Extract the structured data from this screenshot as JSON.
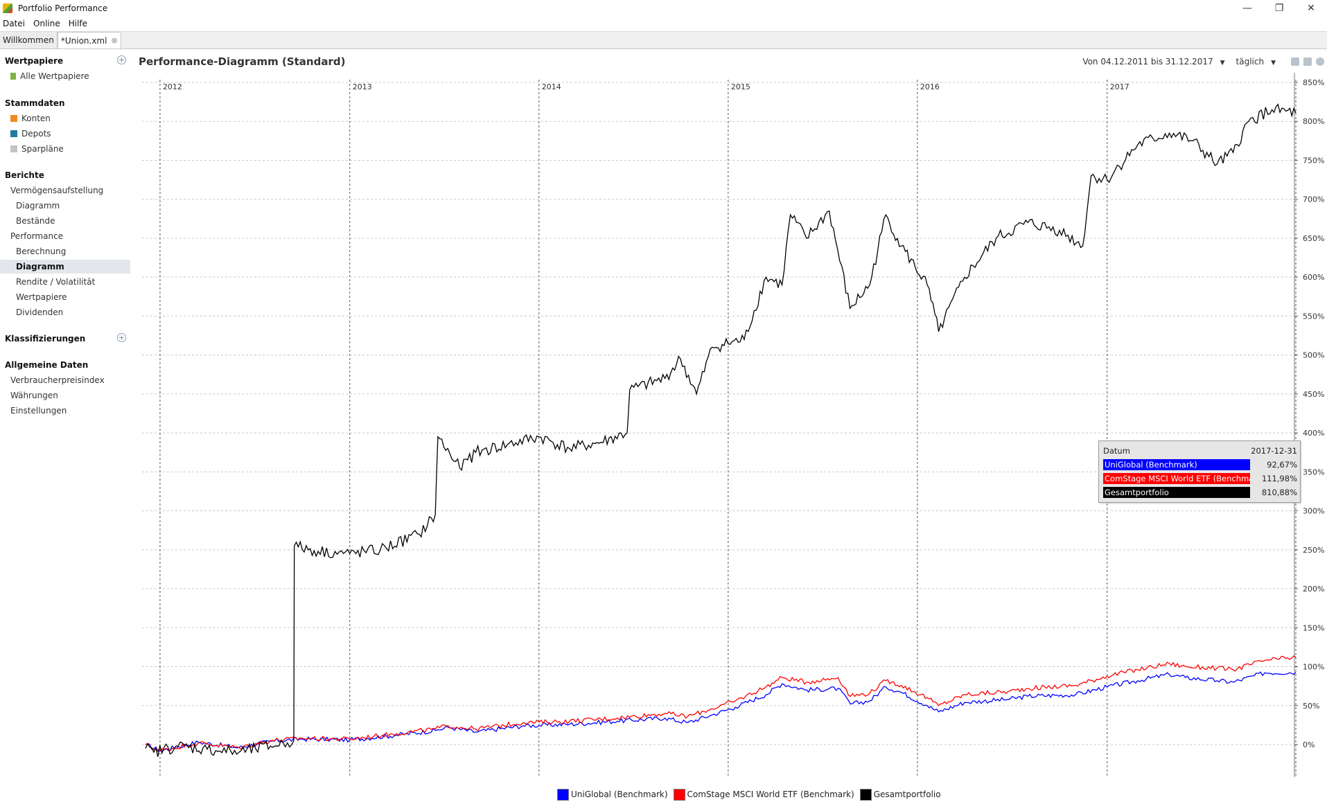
{
  "window": {
    "title": "Portfolio Performance"
  },
  "menu": [
    "Datei",
    "Online",
    "Hilfe"
  ],
  "tabs": [
    {
      "label": "Willkommen"
    },
    {
      "label": "*Union.xml"
    }
  ],
  "sidebar": {
    "wertpapiere": {
      "header": "Wertpapiere",
      "items": [
        "Alle Wertpapiere"
      ]
    },
    "stammdaten": {
      "header": "Stammdaten",
      "items": [
        "Konten",
        "Depots",
        "Sparpläne"
      ]
    },
    "berichte": {
      "header": "Berichte",
      "items": [
        "Vermögensaufstellung",
        "Diagramm",
        "Bestände",
        "Performance",
        "Berechnung",
        "Diagramm",
        "Rendite / Volatilität",
        "Wertpapiere",
        "Dividenden"
      ]
    },
    "klassifizierungen": {
      "header": "Klassifizierungen"
    },
    "allgemein": {
      "header": "Allgemeine Daten",
      "items": [
        "Verbraucherpreisindex",
        "Währungen",
        "Einstellungen"
      ]
    }
  },
  "chart_header": {
    "title": "Performance-Diagramm (Standard)",
    "range": "Von 04.12.2011 bis 31.12.2017",
    "interval": "täglich"
  },
  "tooltip": {
    "header_label": "Datum",
    "header_value": "2017-12-31",
    "rows": [
      {
        "name": "UniGlobal (Benchmark)",
        "value": "92,67%",
        "color": "#0000ff"
      },
      {
        "name": "ComStage MSCI World ETF (Benchmark)",
        "value": "111,98%",
        "color": "#ff0000"
      },
      {
        "name": "Gesamtportfolio",
        "value": "810,88%",
        "color": "#000000"
      }
    ]
  },
  "chart_data": {
    "type": "line",
    "x_range": [
      "2011-12-04",
      "2017-12-31"
    ],
    "x_ticks": [
      "2012",
      "2013",
      "2014",
      "2015",
      "2016",
      "2017"
    ],
    "y_ticks": [
      "0%",
      "50%",
      "100%",
      "150%",
      "200%",
      "250%",
      "300%",
      "350%",
      "400%",
      "450%",
      "500%",
      "550%",
      "600%",
      "650%",
      "700%",
      "750%",
      "800%",
      "850%"
    ],
    "ylim": [
      -25,
      860
    ],
    "grid": true,
    "legend_position": "bottom-center",
    "series": [
      {
        "name": "UniGlobal (Benchmark)",
        "color": "#0000ff",
        "points": [
          [
            "2011-12-04",
            0
          ],
          [
            "2012-01-01",
            -8
          ],
          [
            "2012-03-15",
            3
          ],
          [
            "2012-06-01",
            -4
          ],
          [
            "2012-08-01",
            4
          ],
          [
            "2012-10-01",
            7
          ],
          [
            "2013-01-01",
            6
          ],
          [
            "2013-04-01",
            12
          ],
          [
            "2013-06-15",
            18
          ],
          [
            "2013-07-10",
            22
          ],
          [
            "2013-09-01",
            16
          ],
          [
            "2013-12-01",
            24
          ],
          [
            "2014-03-01",
            26
          ],
          [
            "2014-06-01",
            30
          ],
          [
            "2014-09-01",
            34
          ],
          [
            "2014-10-15",
            28
          ],
          [
            "2014-12-01",
            38
          ],
          [
            "2015-01-15",
            48
          ],
          [
            "2015-03-15",
            64
          ],
          [
            "2015-04-15",
            78
          ],
          [
            "2015-06-01",
            70
          ],
          [
            "2015-08-01",
            72
          ],
          [
            "2015-08-25",
            52
          ],
          [
            "2015-10-01",
            56
          ],
          [
            "2015-11-01",
            74
          ],
          [
            "2015-12-01",
            67
          ],
          [
            "2016-01-20",
            50
          ],
          [
            "2016-02-11",
            42
          ],
          [
            "2016-04-01",
            54
          ],
          [
            "2016-06-24",
            58
          ],
          [
            "2016-08-01",
            62
          ],
          [
            "2016-11-01",
            64
          ],
          [
            "2017-01-01",
            74
          ],
          [
            "2017-03-01",
            82
          ],
          [
            "2017-05-01",
            90
          ],
          [
            "2017-06-01",
            86
          ],
          [
            "2017-08-01",
            82
          ],
          [
            "2017-09-01",
            80
          ],
          [
            "2017-11-01",
            92
          ],
          [
            "2017-12-31",
            92.67
          ]
        ]
      },
      {
        "name": "ComStage MSCI World ETF (Benchmark)",
        "color": "#ff0000",
        "points": [
          [
            "2011-12-04",
            0
          ],
          [
            "2012-01-01",
            -8
          ],
          [
            "2012-03-15",
            2
          ],
          [
            "2012-06-01",
            -4
          ],
          [
            "2012-08-01",
            5
          ],
          [
            "2012-10-01",
            8
          ],
          [
            "2013-01-01",
            7
          ],
          [
            "2013-04-01",
            14
          ],
          [
            "2013-06-15",
            20
          ],
          [
            "2013-07-10",
            24
          ],
          [
            "2013-09-01",
            20
          ],
          [
            "2013-12-01",
            28
          ],
          [
            "2014-03-01",
            30
          ],
          [
            "2014-06-01",
            34
          ],
          [
            "2014-09-01",
            40
          ],
          [
            "2014-10-15",
            36
          ],
          [
            "2014-12-01",
            46
          ],
          [
            "2015-01-15",
            56
          ],
          [
            "2015-03-15",
            74
          ],
          [
            "2015-04-15",
            86
          ],
          [
            "2015-06-01",
            80
          ],
          [
            "2015-08-01",
            86
          ],
          [
            "2015-08-25",
            62
          ],
          [
            "2015-10-01",
            66
          ],
          [
            "2015-11-01",
            82
          ],
          [
            "2015-12-01",
            76
          ],
          [
            "2016-01-20",
            60
          ],
          [
            "2016-02-11",
            50
          ],
          [
            "2016-04-01",
            64
          ],
          [
            "2016-06-24",
            68
          ],
          [
            "2016-08-01",
            72
          ],
          [
            "2016-11-01",
            76
          ],
          [
            "2017-01-01",
            88
          ],
          [
            "2017-03-01",
            96
          ],
          [
            "2017-05-01",
            104
          ],
          [
            "2017-06-01",
            100
          ],
          [
            "2017-08-01",
            98
          ],
          [
            "2017-09-01",
            96
          ],
          [
            "2017-11-01",
            108
          ],
          [
            "2017-12-31",
            111.98
          ]
        ]
      },
      {
        "name": "Gesamtportfolio",
        "color": "#000000",
        "points": [
          [
            "2011-12-04",
            -5
          ],
          [
            "2011-12-20",
            -10
          ],
          [
            "2012-02-01",
            -2
          ],
          [
            "2012-04-01",
            -6
          ],
          [
            "2012-06-01",
            -10
          ],
          [
            "2012-08-01",
            -2
          ],
          [
            "2012-09-15",
            5
          ],
          [
            "2012-09-16",
            255
          ],
          [
            "2012-11-01",
            248
          ],
          [
            "2013-01-01",
            245
          ],
          [
            "2013-03-01",
            250
          ],
          [
            "2013-05-15",
            270
          ],
          [
            "2013-06-15",
            295
          ],
          [
            "2013-06-20",
            395
          ],
          [
            "2013-08-01",
            355
          ],
          [
            "2013-09-01",
            375
          ],
          [
            "2013-11-01",
            385
          ],
          [
            "2014-01-01",
            395
          ],
          [
            "2014-03-01",
            380
          ],
          [
            "2014-05-01",
            388
          ],
          [
            "2014-06-20",
            400
          ],
          [
            "2014-06-25",
            455
          ],
          [
            "2014-09-01",
            470
          ],
          [
            "2014-10-01",
            495
          ],
          [
            "2014-11-01",
            450
          ],
          [
            "2014-12-01",
            510
          ],
          [
            "2015-02-01",
            520
          ],
          [
            "2015-03-15",
            600
          ],
          [
            "2015-04-15",
            590
          ],
          [
            "2015-05-01",
            680
          ],
          [
            "2015-06-01",
            650
          ],
          [
            "2015-07-15",
            685
          ],
          [
            "2015-08-24",
            560
          ],
          [
            "2015-10-01",
            590
          ],
          [
            "2015-11-01",
            680
          ],
          [
            "2015-12-01",
            640
          ],
          [
            "2016-01-20",
            590
          ],
          [
            "2016-02-11",
            530
          ],
          [
            "2016-04-01",
            600
          ],
          [
            "2016-06-01",
            650
          ],
          [
            "2016-08-01",
            670
          ],
          [
            "2016-10-01",
            660
          ],
          [
            "2016-11-15",
            640
          ],
          [
            "2016-12-01",
            730
          ],
          [
            "2017-01-01",
            725
          ],
          [
            "2017-03-01",
            770
          ],
          [
            "2017-05-01",
            785
          ],
          [
            "2017-06-15",
            775
          ],
          [
            "2017-08-01",
            745
          ],
          [
            "2017-09-01",
            760
          ],
          [
            "2017-10-01",
            800
          ],
          [
            "2017-11-15",
            815
          ],
          [
            "2017-12-31",
            810.88
          ]
        ]
      }
    ]
  }
}
